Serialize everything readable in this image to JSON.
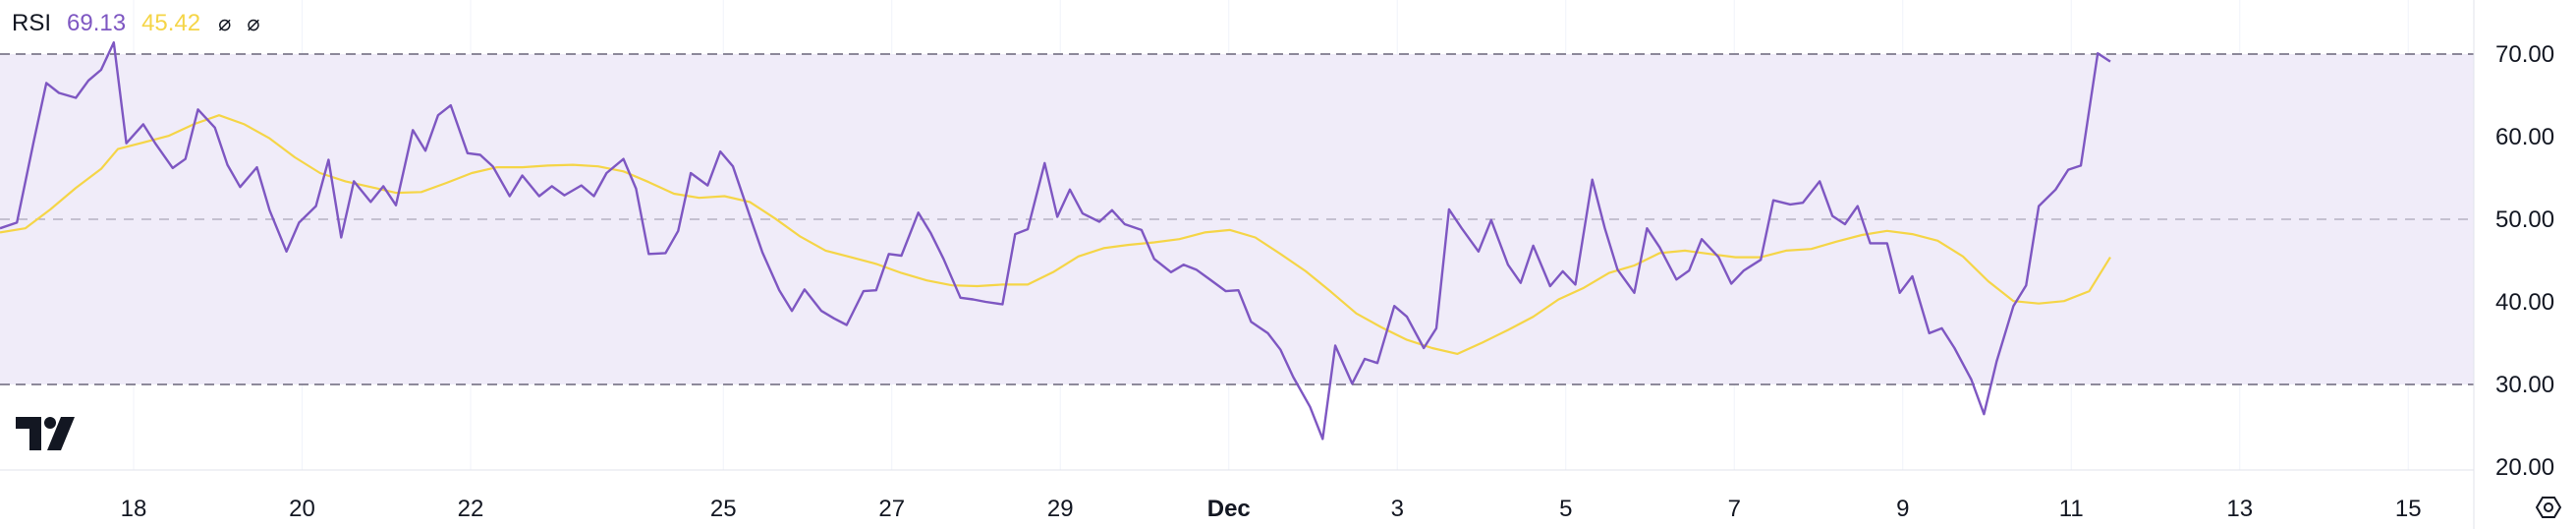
{
  "legend": {
    "indicator": "RSI",
    "rsi_value": "69.13",
    "ma_value": "45.42",
    "hide_symbol_1": "⌀",
    "hide_symbol_2": "⌀"
  },
  "colors": {
    "rsi_line": "#7E57C2",
    "ma_line": "#F5D547",
    "band_fill": "#F0ECF9",
    "band_lines": "#7E7A8C"
  },
  "icons": {
    "logo": "tradingview-logo-icon",
    "settings": "settings-hexagon-icon"
  },
  "chart_data": {
    "type": "line",
    "y_axis": {
      "ticks": [
        70,
        60,
        50,
        40,
        30,
        20
      ],
      "tick_labels": [
        "70.00",
        "60.00",
        "50.00",
        "40.00",
        "30.00",
        "20.00"
      ],
      "range": [
        18,
        73
      ],
      "position": "right"
    },
    "x_axis": {
      "tick_labels": [
        "18",
        "20",
        "22",
        "25",
        "27",
        "29",
        "Dec",
        "3",
        "5",
        "7",
        "9",
        "11",
        "13",
        "15"
      ],
      "tick_positions": [
        1.5,
        3.5,
        5.5,
        8.5,
        10.5,
        12.5,
        14.5,
        16.5,
        18.5,
        20.5,
        22.5,
        24.5,
        26.5,
        28.5
      ],
      "bold_labels": [
        "Dec"
      ],
      "range": [
        0,
        29.2
      ]
    },
    "bands": {
      "upper": 70,
      "middle": 50,
      "lower": 30
    },
    "series": [
      {
        "values": [
          [
            0,
            48.9
          ],
          [
            0.2,
            49.6
          ],
          [
            0.4,
            59.4
          ],
          [
            0.55,
            66.5
          ],
          [
            0.7,
            65.3
          ],
          [
            0.9,
            64.7
          ],
          [
            1.05,
            66.8
          ],
          [
            1.2,
            68.1
          ],
          [
            1.35,
            71.4
          ],
          [
            1.5,
            59.2
          ],
          [
            1.7,
            61.5
          ],
          [
            1.85,
            59.1
          ],
          [
            2.05,
            56.2
          ],
          [
            2.2,
            57.3
          ],
          [
            2.35,
            63.3
          ],
          [
            2.55,
            61.1
          ],
          [
            2.7,
            56.6
          ],
          [
            2.85,
            53.9
          ],
          [
            3.05,
            56.3
          ],
          [
            3.2,
            51.1
          ],
          [
            3.4,
            46.1
          ],
          [
            3.55,
            49.6
          ],
          [
            3.75,
            51.6
          ],
          [
            3.9,
            57.2
          ],
          [
            4.05,
            47.8
          ],
          [
            4.2,
            54.6
          ],
          [
            4.4,
            52.1
          ],
          [
            4.55,
            54.0
          ],
          [
            4.7,
            51.7
          ],
          [
            4.9,
            60.8
          ],
          [
            5.05,
            58.3
          ],
          [
            5.2,
            62.6
          ],
          [
            5.35,
            63.8
          ],
          [
            5.55,
            58.0
          ],
          [
            5.7,
            57.8
          ],
          [
            5.85,
            56.4
          ],
          [
            6.05,
            52.8
          ],
          [
            6.2,
            55.3
          ],
          [
            6.4,
            52.8
          ],
          [
            6.55,
            54.0
          ],
          [
            6.7,
            52.9
          ],
          [
            6.9,
            54.1
          ],
          [
            7.05,
            52.8
          ],
          [
            7.2,
            55.6
          ],
          [
            7.4,
            57.3
          ],
          [
            7.55,
            53.7
          ],
          [
            7.7,
            45.8
          ],
          [
            7.9,
            45.9
          ],
          [
            8.05,
            48.6
          ],
          [
            8.2,
            55.6
          ],
          [
            8.4,
            54.1
          ],
          [
            8.55,
            58.2
          ],
          [
            8.7,
            56.4
          ],
          [
            8.9,
            50.4
          ],
          [
            9.05,
            46.0
          ],
          [
            9.25,
            41.4
          ],
          [
            9.4,
            38.9
          ],
          [
            9.55,
            41.5
          ],
          [
            9.75,
            38.9
          ],
          [
            9.9,
            38.0
          ],
          [
            10.05,
            37.2
          ],
          [
            10.25,
            41.3
          ],
          [
            10.4,
            41.4
          ],
          [
            10.55,
            45.8
          ],
          [
            10.7,
            45.6
          ],
          [
            10.9,
            50.8
          ],
          [
            11.05,
            48.3
          ],
          [
            11.2,
            45.2
          ],
          [
            11.4,
            40.5
          ],
          [
            11.55,
            40.3
          ],
          [
            11.7,
            40.0
          ],
          [
            11.9,
            39.7
          ],
          [
            12.05,
            48.2
          ],
          [
            12.2,
            48.8
          ],
          [
            12.4,
            56.8
          ],
          [
            12.55,
            50.3
          ],
          [
            12.7,
            53.6
          ],
          [
            12.85,
            50.7
          ],
          [
            13.05,
            49.7
          ],
          [
            13.2,
            51.1
          ],
          [
            13.35,
            49.4
          ],
          [
            13.55,
            48.7
          ],
          [
            13.7,
            45.2
          ],
          [
            13.9,
            43.6
          ],
          [
            14.05,
            44.5
          ],
          [
            14.2,
            43.9
          ],
          [
            14.35,
            42.8
          ],
          [
            14.55,
            41.3
          ],
          [
            14.7,
            41.4
          ],
          [
            14.85,
            37.6
          ],
          [
            15.05,
            36.2
          ],
          [
            15.2,
            34.2
          ],
          [
            15.35,
            30.9
          ],
          [
            15.55,
            27.3
          ],
          [
            15.7,
            23.4
          ],
          [
            15.85,
            34.7
          ],
          [
            16.05,
            30.1
          ],
          [
            16.2,
            33.1
          ],
          [
            16.35,
            32.6
          ],
          [
            16.55,
            39.5
          ],
          [
            16.7,
            38.2
          ],
          [
            16.9,
            34.4
          ],
          [
            17.05,
            36.8
          ],
          [
            17.2,
            51.2
          ],
          [
            17.35,
            48.9
          ],
          [
            17.55,
            46.1
          ],
          [
            17.7,
            49.9
          ],
          [
            17.9,
            44.5
          ],
          [
            18.05,
            42.3
          ],
          [
            18.2,
            46.8
          ],
          [
            18.4,
            41.9
          ],
          [
            18.55,
            43.7
          ],
          [
            18.7,
            42.1
          ],
          [
            18.9,
            54.8
          ],
          [
            19.05,
            48.9
          ],
          [
            19.2,
            43.9
          ],
          [
            19.4,
            41.1
          ],
          [
            19.55,
            48.9
          ],
          [
            19.7,
            46.6
          ],
          [
            19.9,
            42.7
          ],
          [
            20.05,
            43.8
          ],
          [
            20.2,
            47.6
          ],
          [
            20.4,
            45.4
          ],
          [
            20.55,
            42.2
          ],
          [
            20.7,
            43.8
          ],
          [
            20.9,
            45.1
          ],
          [
            21.05,
            52.3
          ],
          [
            21.25,
            51.8
          ],
          [
            21.4,
            52.0
          ],
          [
            21.6,
            54.6
          ],
          [
            21.75,
            50.4
          ],
          [
            21.9,
            49.4
          ],
          [
            22.05,
            51.6
          ],
          [
            22.2,
            47.1
          ],
          [
            22.4,
            47.1
          ],
          [
            22.55,
            41.1
          ],
          [
            22.7,
            43.1
          ],
          [
            22.9,
            36.2
          ],
          [
            23.05,
            36.8
          ],
          [
            23.2,
            34.4
          ],
          [
            23.4,
            30.6
          ],
          [
            23.55,
            26.4
          ],
          [
            23.7,
            32.8
          ],
          [
            23.9,
            39.5
          ],
          [
            24.05,
            42.0
          ],
          [
            24.2,
            51.6
          ],
          [
            24.4,
            53.6
          ],
          [
            24.55,
            56.0
          ],
          [
            24.7,
            56.5
          ],
          [
            24.9,
            70.1
          ],
          [
            25.05,
            69.1
          ]
        ]
      },
      {
        "values": [
          [
            0,
            48.4
          ],
          [
            0.3,
            48.9
          ],
          [
            0.6,
            51.2
          ],
          [
            0.9,
            53.8
          ],
          [
            1.2,
            56.1
          ],
          [
            1.4,
            58.5
          ],
          [
            1.7,
            59.3
          ],
          [
            2.0,
            60.1
          ],
          [
            2.3,
            61.5
          ],
          [
            2.6,
            62.6
          ],
          [
            2.9,
            61.5
          ],
          [
            3.2,
            59.8
          ],
          [
            3.5,
            57.5
          ],
          [
            3.8,
            55.6
          ],
          [
            4.1,
            54.6
          ],
          [
            4.4,
            53.9
          ],
          [
            4.7,
            53.2
          ],
          [
            5.0,
            53.3
          ],
          [
            5.3,
            54.4
          ],
          [
            5.6,
            55.6
          ],
          [
            5.9,
            56.3
          ],
          [
            6.2,
            56.3
          ],
          [
            6.5,
            56.5
          ],
          [
            6.8,
            56.6
          ],
          [
            7.1,
            56.4
          ],
          [
            7.4,
            55.8
          ],
          [
            7.7,
            54.5
          ],
          [
            8.0,
            53.1
          ],
          [
            8.3,
            52.6
          ],
          [
            8.6,
            52.8
          ],
          [
            8.9,
            52.1
          ],
          [
            9.2,
            50.1
          ],
          [
            9.5,
            47.9
          ],
          [
            9.8,
            46.2
          ],
          [
            10.1,
            45.4
          ],
          [
            10.4,
            44.6
          ],
          [
            10.7,
            43.5
          ],
          [
            11.0,
            42.6
          ],
          [
            11.3,
            42.0
          ],
          [
            11.6,
            41.9
          ],
          [
            11.9,
            42.1
          ],
          [
            12.2,
            42.1
          ],
          [
            12.5,
            43.6
          ],
          [
            12.8,
            45.5
          ],
          [
            13.1,
            46.5
          ],
          [
            13.4,
            46.9
          ],
          [
            13.7,
            47.2
          ],
          [
            14.0,
            47.6
          ],
          [
            14.3,
            48.4
          ],
          [
            14.6,
            48.7
          ],
          [
            14.9,
            47.8
          ],
          [
            15.2,
            45.8
          ],
          [
            15.5,
            43.7
          ],
          [
            15.8,
            41.2
          ],
          [
            16.1,
            38.6
          ],
          [
            16.4,
            36.9
          ],
          [
            16.7,
            35.4
          ],
          [
            17.0,
            34.4
          ],
          [
            17.3,
            33.7
          ],
          [
            17.6,
            35.1
          ],
          [
            17.9,
            36.6
          ],
          [
            18.2,
            38.2
          ],
          [
            18.5,
            40.3
          ],
          [
            18.8,
            41.7
          ],
          [
            19.1,
            43.5
          ],
          [
            19.4,
            44.4
          ],
          [
            19.7,
            45.9
          ],
          [
            20.0,
            46.2
          ],
          [
            20.3,
            45.8
          ],
          [
            20.6,
            45.4
          ],
          [
            20.9,
            45.4
          ],
          [
            21.2,
            46.2
          ],
          [
            21.5,
            46.4
          ],
          [
            21.8,
            47.3
          ],
          [
            22.1,
            48.1
          ],
          [
            22.4,
            48.6
          ],
          [
            22.7,
            48.2
          ],
          [
            23.0,
            47.4
          ],
          [
            23.3,
            45.5
          ],
          [
            23.6,
            42.5
          ],
          [
            23.9,
            40.1
          ],
          [
            24.2,
            39.8
          ],
          [
            24.5,
            40.1
          ],
          [
            24.8,
            41.3
          ],
          [
            25.05,
            45.4
          ]
        ]
      }
    ]
  }
}
